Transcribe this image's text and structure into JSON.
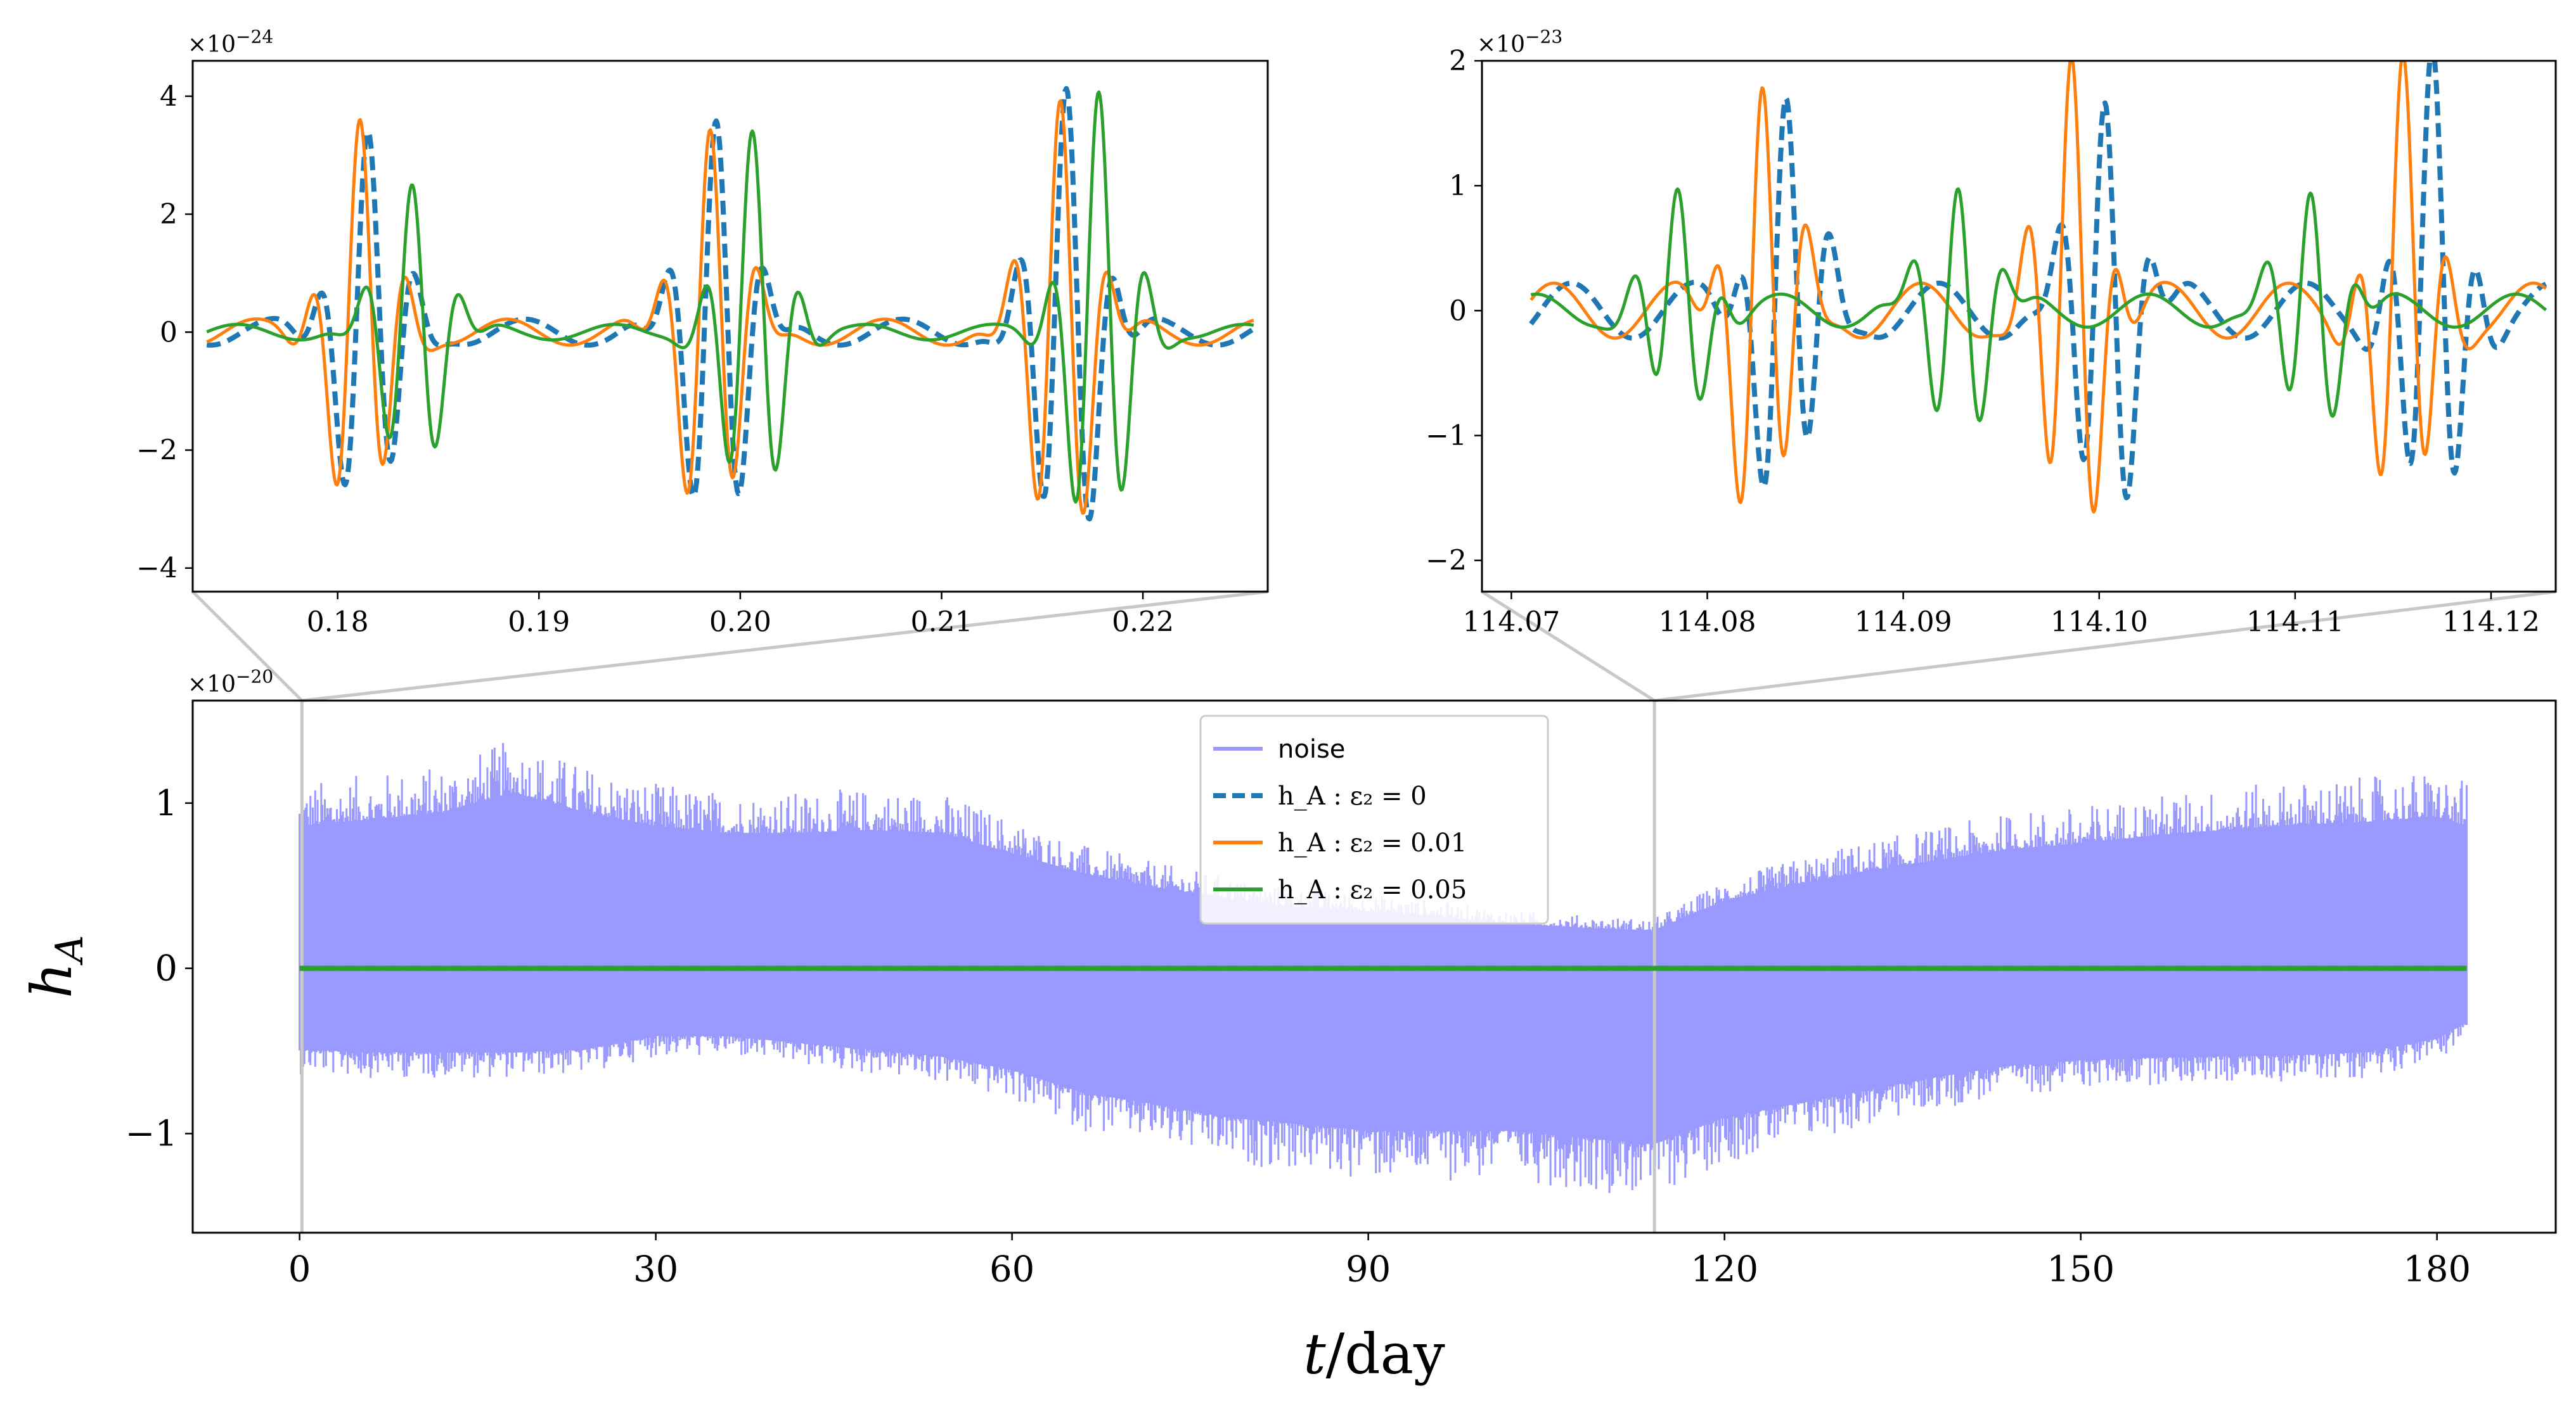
{
  "colors": {
    "noise": "#9999ff",
    "eps0": "#1f77b4",
    "eps001": "#ff7f0e",
    "eps005": "#2ca02c",
    "connector": "#c8c8c8"
  },
  "chart_data": [
    {
      "id": "main",
      "type": "line",
      "xlabel": "t/day",
      "ylabel": "h_A",
      "y_exponent_label": "×10^−20",
      "xlim": [
        -9,
        190
      ],
      "ylim": [
        -1.6,
        1.62
      ],
      "x_ticks": [
        0,
        30,
        60,
        90,
        120,
        150,
        180
      ],
      "x_tick_labels": [
        "0",
        "30",
        "60",
        "90",
        "120",
        "150",
        "180"
      ],
      "y_ticks": [
        -1,
        0,
        1
      ],
      "y_tick_labels": [
        "−1",
        "0",
        "1"
      ],
      "noise_envelope": {
        "t": [
          0,
          6,
          12,
          18,
          24,
          30,
          36,
          42,
          48,
          54,
          60,
          66,
          72,
          78,
          84,
          90,
          96,
          102,
          108,
          114,
          120,
          126,
          132,
          138,
          144,
          150,
          156,
          162,
          168,
          174,
          180,
          182.5
        ],
        "upper": [
          1.05,
          1.1,
          1.15,
          1.3,
          1.15,
          1.05,
          1.0,
          1.0,
          1.02,
          1.0,
          0.85,
          0.7,
          0.6,
          0.52,
          0.45,
          0.42,
          0.38,
          0.33,
          0.3,
          0.28,
          0.5,
          0.62,
          0.72,
          0.8,
          0.88,
          0.92,
          0.98,
          1.02,
          1.06,
          1.08,
          1.12,
          1.05
        ],
        "lower": [
          -0.6,
          -0.62,
          -0.62,
          -0.62,
          -0.6,
          -0.5,
          -0.5,
          -0.55,
          -0.6,
          -0.65,
          -0.75,
          -0.92,
          -1.0,
          -1.1,
          -1.15,
          -1.2,
          -1.2,
          -1.2,
          -1.25,
          -1.3,
          -1.1,
          -1.0,
          -0.9,
          -0.8,
          -0.72,
          -0.68,
          -0.66,
          -0.65,
          -0.64,
          -0.62,
          -0.52,
          -0.4
        ]
      },
      "series": [
        {
          "name": "noise",
          "color_key": "noise",
          "style": "solid"
        },
        {
          "name": "h_A : ε2 = 0",
          "color_key": "eps0",
          "style": "dashed"
        },
        {
          "name": "h_A : ε2 = 0.01",
          "color_key": "eps001",
          "style": "solid"
        },
        {
          "name": "h_A : ε2 = 0.05",
          "color_key": "eps005",
          "style": "solid"
        }
      ],
      "signal_value": 0,
      "signal_t_range": [
        0,
        182.5
      ],
      "zoom_markers": [
        0.2,
        114.1
      ],
      "legend_position": "top-center",
      "legend_entries": [
        {
          "label": "noise",
          "color_key": "noise",
          "style": "solid",
          "font": "sans"
        },
        {
          "label": "h_A :  ε₂ = 0",
          "color_key": "eps0",
          "style": "dashed",
          "font": "serif"
        },
        {
          "label": "h_A :  ε₂ = 0.01",
          "color_key": "eps001",
          "style": "solid",
          "font": "serif"
        },
        {
          "label": "h_A :  ε₂ = 0.05",
          "color_key": "eps005",
          "style": "solid",
          "font": "serif"
        }
      ]
    },
    {
      "id": "inset-left",
      "type": "line",
      "xlabel": "",
      "ylabel": "",
      "y_exponent_label": "×10^−24",
      "xlim": [
        0.1728,
        0.2262
      ],
      "ylim": [
        -4.4,
        4.6
      ],
      "x_ticks": [
        0.18,
        0.19,
        0.2,
        0.21,
        0.22
      ],
      "x_tick_labels": [
        "0.18",
        "0.19",
        "0.20",
        "0.21",
        "0.22"
      ],
      "y_ticks": [
        -4,
        -2,
        0,
        2,
        4
      ],
      "y_tick_labels": [
        "−4",
        "−2",
        "0",
        "2",
        "4"
      ],
      "x_range": [
        0.1735,
        0.2255
      ],
      "bursts": [
        {
          "t0": 0.1815,
          "amp": [
            3.4,
            3.5,
            2.6
          ],
          "shift": [
            0,
            -0.0004,
            0.0022
          ],
          "sigma": 0.0014,
          "freq": 410
        },
        {
          "t0": 0.1988,
          "amp": [
            3.8,
            3.6,
            3.3
          ],
          "shift": [
            0,
            -0.0003,
            0.0018
          ],
          "sigma": 0.0014,
          "freq": 410
        },
        {
          "t0": 0.2162,
          "amp": [
            4.2,
            4.1,
            4.0
          ],
          "shift": [
            0,
            -0.0003,
            0.0016
          ],
          "sigma": 0.0014,
          "freq": 410
        }
      ],
      "series": [
        {
          "name": "h_A : ε2 = 0",
          "color_key": "eps0",
          "style": "dashed"
        },
        {
          "name": "h_A : ε2 = 0.01",
          "color_key": "eps001",
          "style": "solid"
        },
        {
          "name": "h_A : ε2 = 0.05",
          "color_key": "eps005",
          "style": "solid"
        }
      ]
    },
    {
      "id": "inset-right",
      "type": "line",
      "xlabel": "",
      "ylabel": "",
      "y_exponent_label": "×10^−23",
      "xlim": [
        114.0685,
        114.1233
      ],
      "ylim": [
        -2.25,
        2.0
      ],
      "x_ticks": [
        114.07,
        114.08,
        114.09,
        114.1,
        114.11,
        114.12
      ],
      "x_tick_labels": [
        "114.07",
        "114.08",
        "114.09",
        "114.10",
        "114.11",
        "114.12"
      ],
      "y_ticks": [
        -2,
        -1,
        0,
        1,
        2
      ],
      "y_tick_labels": [
        "−2",
        "−1",
        "0",
        "1",
        "2"
      ],
      "x_range": [
        114.071,
        114.1228
      ],
      "bursts": [
        {
          "t0": 114.084,
          "amp": [
            1.7,
            1.85,
            0.9
          ],
          "shift": [
            0,
            -0.0012,
            -0.0055
          ],
          "sigma": 0.0014,
          "freq": 420
        },
        {
          "t0": 114.1003,
          "amp": [
            1.8,
            2.0,
            1.1
          ],
          "shift": [
            0,
            -0.0017,
            -0.0075
          ],
          "sigma": 0.0014,
          "freq": 420
        },
        {
          "t0": 114.117,
          "amp": [
            1.9,
            1.85,
            1.0
          ],
          "shift": [
            0,
            -0.0015,
            -0.0062
          ],
          "sigma": 0.0014,
          "freq": 420
        }
      ],
      "series": [
        {
          "name": "h_A : ε2 = 0",
          "color_key": "eps0",
          "style": "dashed"
        },
        {
          "name": "h_A : ε2 = 0.01",
          "color_key": "eps001",
          "style": "solid"
        },
        {
          "name": "h_A : ε2 = 0.05",
          "color_key": "eps005",
          "style": "solid"
        }
      ]
    }
  ]
}
